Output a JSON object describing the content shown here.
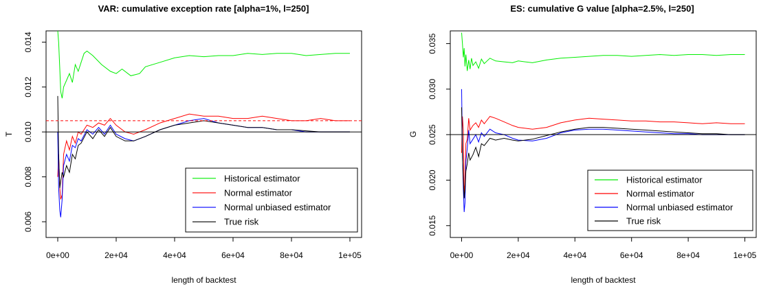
{
  "chart_data": [
    {
      "type": "line",
      "title": "VAR: cumulative exception rate [alpha=1%, l=250]",
      "xlabel": "length of backtest",
      "ylabel": "T",
      "xlim": [
        0,
        100000
      ],
      "ylim": [
        0.0053,
        0.0145
      ],
      "xticks": [
        0,
        20000,
        40000,
        60000,
        80000,
        100000
      ],
      "xtick_labels": [
        "0e+00",
        "2e+04",
        "4e+04",
        "6e+04",
        "8e+04",
        "1e+05"
      ],
      "yticks": [
        0.006,
        0.008,
        0.01,
        0.012,
        0.014
      ],
      "ytick_labels": [
        "0.006",
        "0.008",
        "0.010",
        "0.012",
        "0.014"
      ],
      "reference_lines": [
        {
          "y": 0.01,
          "color": "#000000",
          "style": "solid"
        },
        {
          "y": 0.0105,
          "color": "#ff0000",
          "style": "dashed"
        }
      ],
      "legend_position": "bottom-right",
      "series": [
        {
          "name": "Historical estimator",
          "color": "#00ee00",
          "x": [
            0,
            300,
            700,
            1000,
            1500,
            2000,
            3000,
            4000,
            5000,
            6000,
            7000,
            8000,
            9000,
            10000,
            12000,
            15000,
            18000,
            20000,
            22000,
            25000,
            28000,
            30000,
            35000,
            40000,
            45000,
            50000,
            55000,
            60000,
            65000,
            70000,
            75000,
            80000,
            85000,
            90000,
            95000,
            100000
          ],
          "y": [
            0.0145,
            0.014,
            0.0128,
            0.0118,
            0.0115,
            0.012,
            0.0123,
            0.0126,
            0.0122,
            0.013,
            0.0127,
            0.0131,
            0.0135,
            0.0136,
            0.0134,
            0.013,
            0.0127,
            0.0126,
            0.0128,
            0.0125,
            0.0126,
            0.0129,
            0.0131,
            0.0133,
            0.0134,
            0.01335,
            0.0134,
            0.0134,
            0.0135,
            0.01345,
            0.0135,
            0.0135,
            0.0134,
            0.01345,
            0.0135,
            0.0135
          ]
        },
        {
          "name": "Normal estimator",
          "color": "#ff0000",
          "x": [
            0,
            300,
            700,
            1000,
            1500,
            2000,
            3000,
            4000,
            5000,
            6000,
            7000,
            8000,
            10000,
            12000,
            14000,
            16000,
            18000,
            20000,
            23000,
            26000,
            30000,
            35000,
            40000,
            45000,
            50000,
            55000,
            60000,
            65000,
            70000,
            75000,
            80000,
            85000,
            90000,
            95000,
            100000
          ],
          "y": [
            0.008,
            0.009,
            0.0075,
            0.007,
            0.0072,
            0.009,
            0.0096,
            0.0092,
            0.0098,
            0.0095,
            0.01,
            0.0099,
            0.0103,
            0.0102,
            0.0104,
            0.0103,
            0.0106,
            0.0103,
            0.01,
            0.0099,
            0.0101,
            0.0104,
            0.0106,
            0.0108,
            0.0107,
            0.0107,
            0.0106,
            0.0106,
            0.0107,
            0.0106,
            0.0105,
            0.0105,
            0.0106,
            0.0105,
            0.0105
          ]
        },
        {
          "name": "Normal unbiased estimator",
          "color": "#0000ff",
          "x": [
            0,
            300,
            700,
            1000,
            1500,
            2000,
            3000,
            4000,
            5000,
            6000,
            7000,
            8000,
            10000,
            12000,
            14000,
            16000,
            18000,
            20000,
            23000,
            26000,
            30000,
            35000,
            40000,
            45000,
            50000,
            55000,
            60000,
            65000,
            70000,
            75000,
            80000,
            85000,
            90000,
            95000,
            100000
          ],
          "y": [
            0.01,
            0.0075,
            0.0065,
            0.0062,
            0.007,
            0.0085,
            0.009,
            0.0087,
            0.0094,
            0.0093,
            0.0097,
            0.0096,
            0.0101,
            0.0099,
            0.0102,
            0.0099,
            0.0103,
            0.0099,
            0.0097,
            0.0096,
            0.0098,
            0.0101,
            0.0103,
            0.0105,
            0.0106,
            0.0104,
            0.0103,
            0.0102,
            0.0102,
            0.0101,
            0.0101,
            0.01,
            0.01,
            0.01,
            0.01
          ]
        },
        {
          "name": "True risk",
          "color": "#000000",
          "x": [
            0,
            300,
            700,
            1000,
            1500,
            2000,
            3000,
            4000,
            5000,
            6000,
            7000,
            8000,
            10000,
            12000,
            14000,
            16000,
            18000,
            20000,
            23000,
            26000,
            30000,
            35000,
            40000,
            45000,
            50000,
            55000,
            60000,
            65000,
            70000,
            75000,
            80000,
            85000,
            90000,
            95000,
            100000
          ],
          "y": [
            0.0116,
            0.009,
            0.0075,
            0.0078,
            0.0082,
            0.008,
            0.0085,
            0.0082,
            0.009,
            0.0088,
            0.0094,
            0.0095,
            0.01,
            0.0097,
            0.0101,
            0.0098,
            0.0102,
            0.0098,
            0.0096,
            0.0096,
            0.0098,
            0.0101,
            0.0103,
            0.0104,
            0.0105,
            0.0104,
            0.0103,
            0.0102,
            0.0102,
            0.0101,
            0.0101,
            0.01005,
            0.01,
            0.01,
            0.01
          ]
        }
      ]
    },
    {
      "type": "line",
      "title": "ES: cumulative G value [alpha=2.5%, l=250]",
      "xlabel": "length of backtest",
      "ylabel": "G",
      "xlim": [
        0,
        100000
      ],
      "ylim": [
        0.0137,
        0.0364
      ],
      "xticks": [
        0,
        20000,
        40000,
        60000,
        80000,
        100000
      ],
      "xtick_labels": [
        "0e+00",
        "2e+04",
        "4e+04",
        "6e+04",
        "8e+04",
        "1e+05"
      ],
      "yticks": [
        0.015,
        0.02,
        0.025,
        0.03,
        0.035
      ],
      "ytick_labels": [
        "0.015",
        "0.020",
        "0.025",
        "0.030",
        "0.035"
      ],
      "reference_lines": [
        {
          "y": 0.025,
          "color": "#000000",
          "style": "solid"
        }
      ],
      "legend_position": "bottom-right",
      "series": [
        {
          "name": "Historical estimator",
          "color": "#00ee00",
          "x": [
            0,
            300,
            600,
            900,
            1200,
            1500,
            2000,
            2500,
            3000,
            3500,
            4000,
            5000,
            6000,
            7000,
            8000,
            10000,
            12000,
            15000,
            18000,
            20000,
            25000,
            30000,
            35000,
            40000,
            45000,
            50000,
            55000,
            60000,
            65000,
            70000,
            75000,
            80000,
            85000,
            90000,
            95000,
            100000
          ],
          "y": [
            0.0362,
            0.035,
            0.0335,
            0.0345,
            0.0325,
            0.0338,
            0.032,
            0.0332,
            0.0322,
            0.0334,
            0.0326,
            0.033,
            0.0323,
            0.0333,
            0.0328,
            0.0334,
            0.0331,
            0.033,
            0.0329,
            0.0331,
            0.0329,
            0.0332,
            0.0334,
            0.0335,
            0.0336,
            0.0337,
            0.0337,
            0.0336,
            0.0337,
            0.0338,
            0.0337,
            0.0338,
            0.0338,
            0.0337,
            0.0338,
            0.0338
          ]
        },
        {
          "name": "Normal estimator",
          "color": "#ff0000",
          "x": [
            0,
            300,
            600,
            900,
            1200,
            1500,
            2000,
            2500,
            3000,
            4000,
            5000,
            6000,
            7000,
            8000,
            10000,
            12000,
            15000,
            18000,
            20000,
            25000,
            30000,
            35000,
            40000,
            45000,
            50000,
            55000,
            60000,
            65000,
            70000,
            75000,
            80000,
            85000,
            90000,
            95000,
            100000
          ],
          "y": [
            0.023,
            0.027,
            0.0255,
            0.0185,
            0.0195,
            0.024,
            0.0245,
            0.0268,
            0.0255,
            0.026,
            0.0263,
            0.0258,
            0.0266,
            0.0262,
            0.027,
            0.0268,
            0.0264,
            0.026,
            0.0258,
            0.0256,
            0.0258,
            0.0263,
            0.0266,
            0.0268,
            0.0267,
            0.0266,
            0.0265,
            0.0265,
            0.0264,
            0.0264,
            0.0263,
            0.0262,
            0.0263,
            0.0262,
            0.0262
          ]
        },
        {
          "name": "Normal unbiased estimator",
          "color": "#0000ff",
          "x": [
            0,
            300,
            600,
            900,
            1200,
            1500,
            2000,
            2500,
            3000,
            4000,
            5000,
            6000,
            7000,
            8000,
            10000,
            12000,
            15000,
            18000,
            20000,
            25000,
            30000,
            35000,
            40000,
            45000,
            50000,
            55000,
            60000,
            65000,
            70000,
            75000,
            80000,
            85000,
            90000,
            95000,
            100000
          ],
          "y": [
            0.03,
            0.023,
            0.019,
            0.0165,
            0.0175,
            0.022,
            0.0235,
            0.0255,
            0.024,
            0.0245,
            0.025,
            0.0242,
            0.0252,
            0.0248,
            0.0256,
            0.0252,
            0.025,
            0.0246,
            0.0244,
            0.0243,
            0.0246,
            0.0252,
            0.0255,
            0.0256,
            0.0256,
            0.0255,
            0.0254,
            0.0253,
            0.0252,
            0.0251,
            0.0251,
            0.025,
            0.025,
            0.025,
            0.025
          ]
        },
        {
          "name": "True risk",
          "color": "#000000",
          "x": [
            0,
            300,
            600,
            900,
            1200,
            1500,
            2000,
            2500,
            3000,
            4000,
            5000,
            6000,
            7000,
            8000,
            10000,
            12000,
            15000,
            18000,
            20000,
            25000,
            30000,
            35000,
            40000,
            45000,
            50000,
            55000,
            60000,
            65000,
            70000,
            75000,
            80000,
            85000,
            90000,
            95000,
            100000
          ],
          "y": [
            0.028,
            0.0225,
            0.02,
            0.018,
            0.019,
            0.021,
            0.0218,
            0.023,
            0.0222,
            0.0228,
            0.0236,
            0.0226,
            0.024,
            0.0238,
            0.0246,
            0.0244,
            0.0246,
            0.0244,
            0.0243,
            0.0245,
            0.0249,
            0.0253,
            0.0256,
            0.0258,
            0.0258,
            0.0257,
            0.0256,
            0.0255,
            0.0254,
            0.0253,
            0.0252,
            0.0251,
            0.0251,
            0.025,
            0.025
          ]
        }
      ]
    }
  ]
}
